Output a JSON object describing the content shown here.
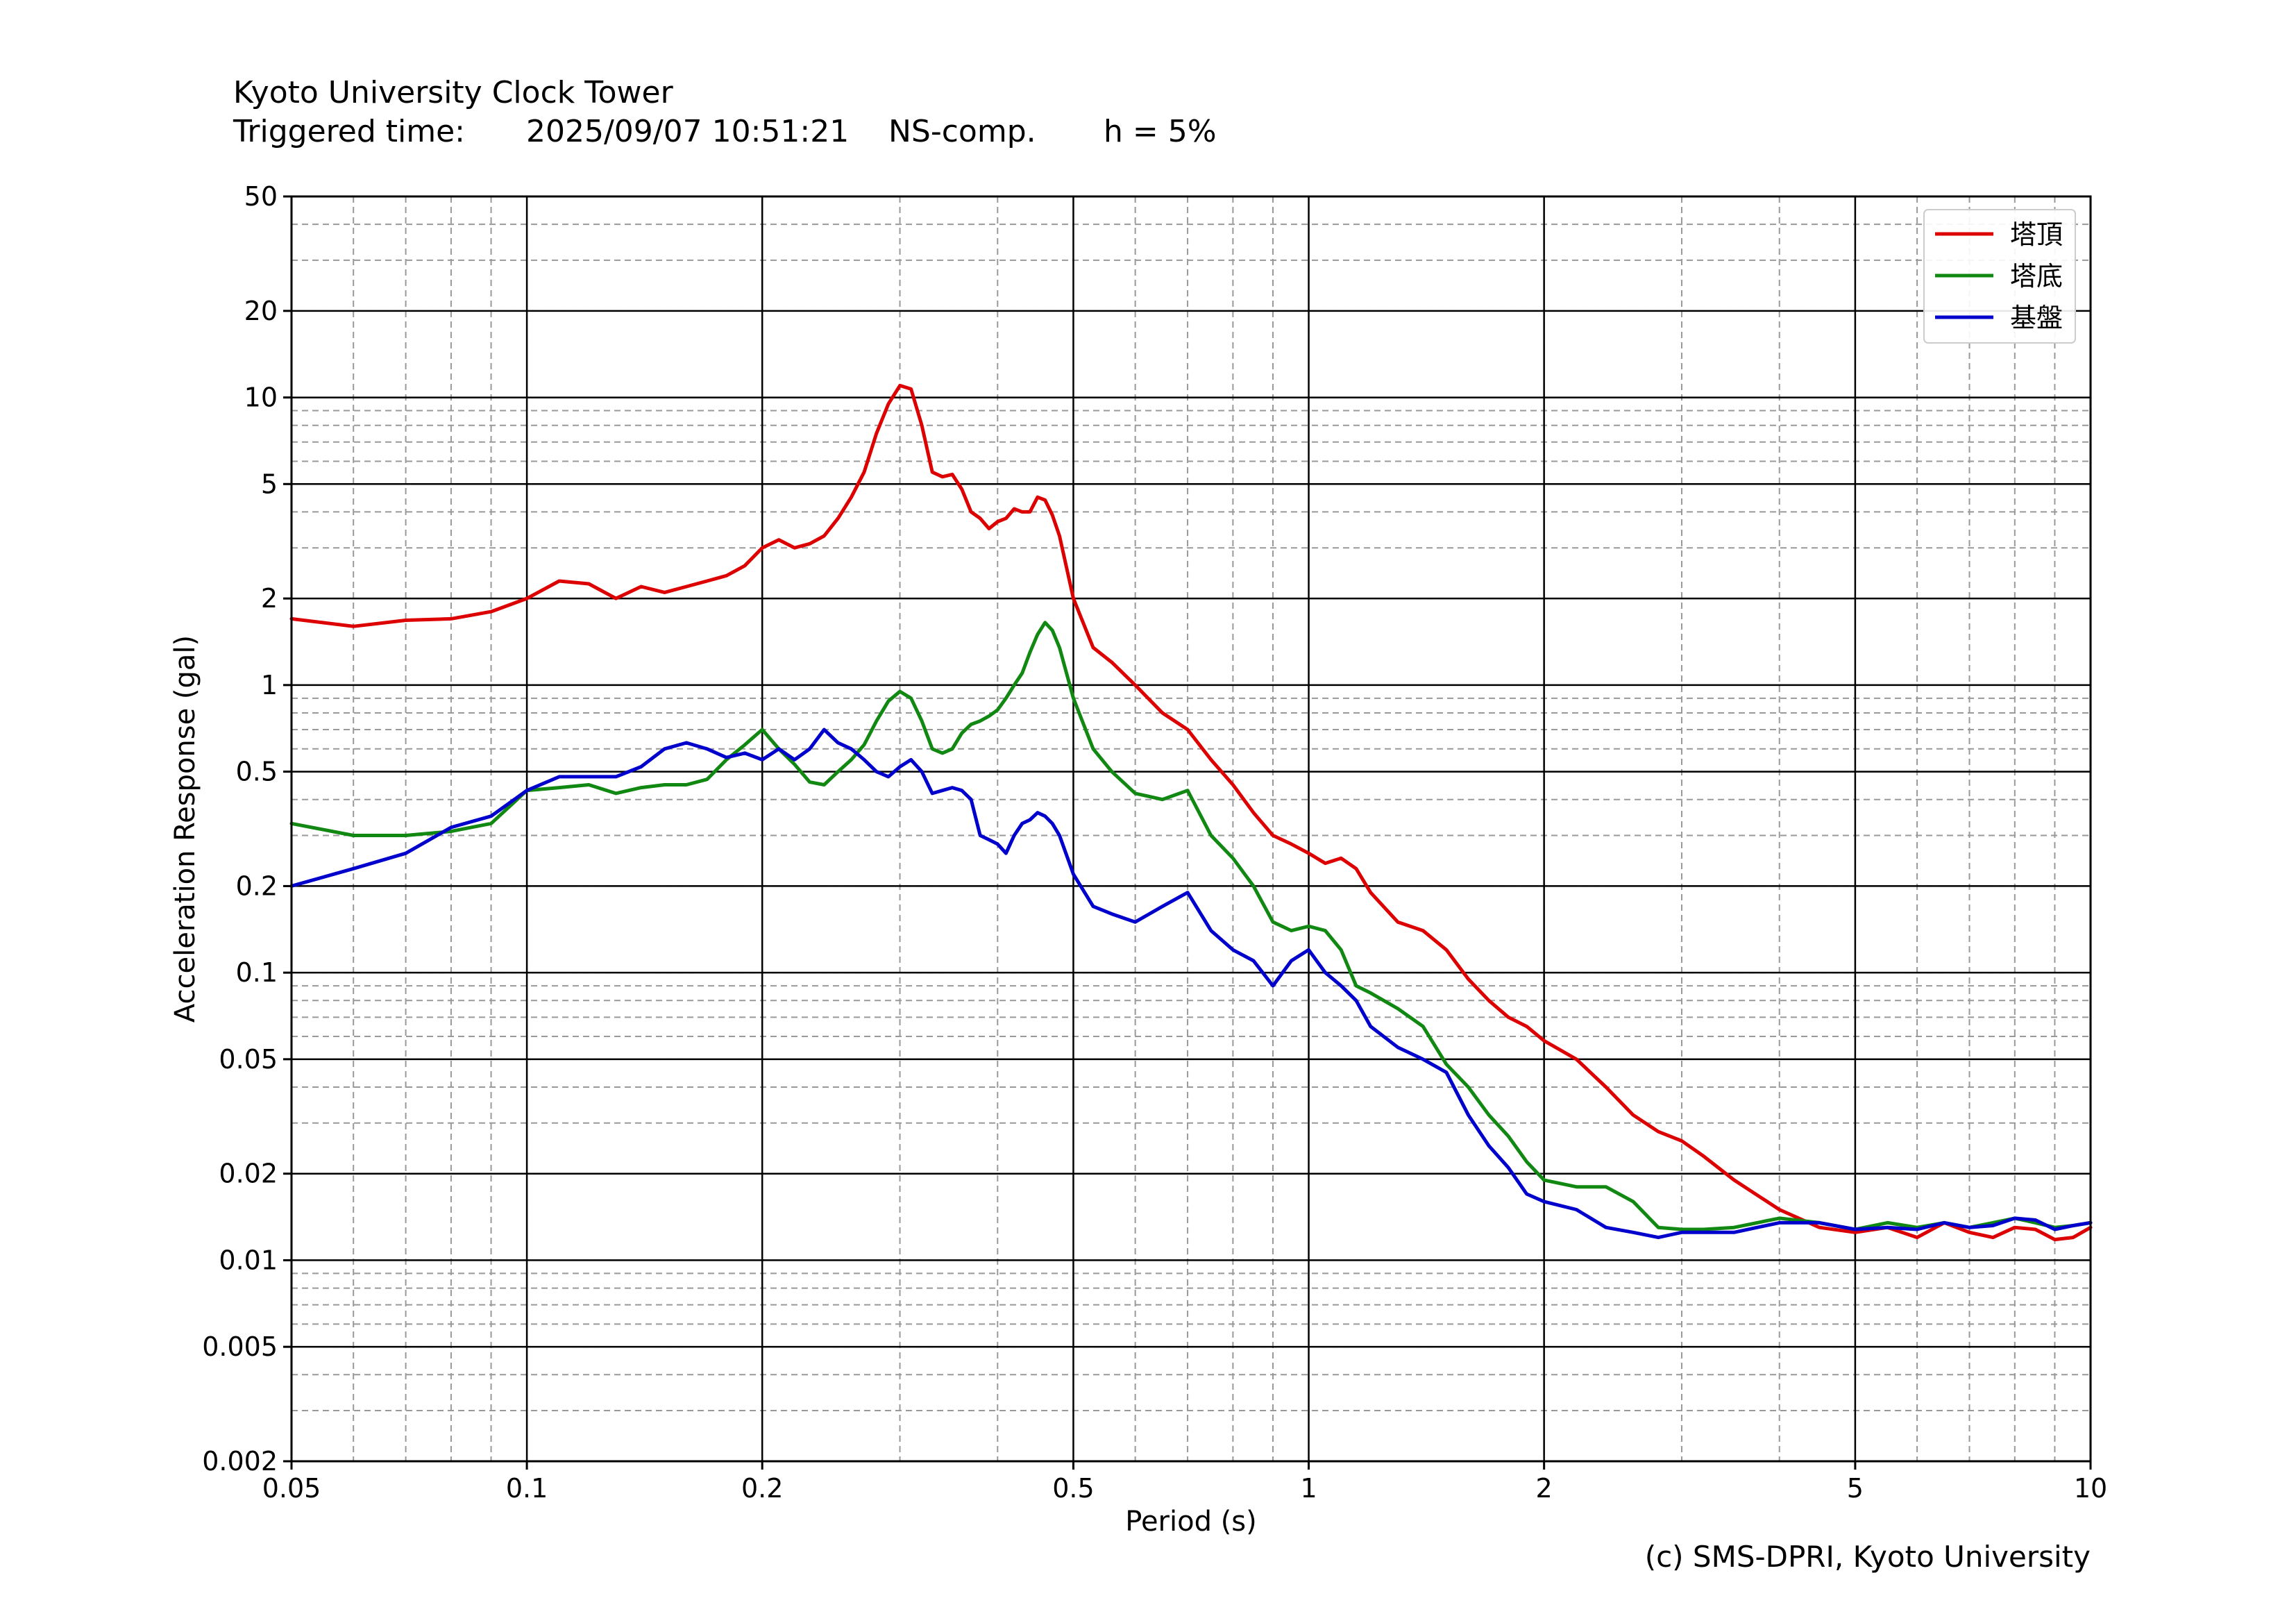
{
  "header": {
    "title": "Kyoto University Clock Tower",
    "triggered_label": "Triggered time:",
    "triggered_value": "2025/09/07 10:51:21",
    "component": "NS-comp.",
    "damping": "h = 5%"
  },
  "credit": "(c) SMS-DPRI, Kyoto University",
  "chart_data": {
    "type": "line",
    "title": "Kyoto University Clock Tower",
    "xlabel": "Period (s)",
    "ylabel": "Acceleration Response (gal)",
    "xscale": "log",
    "yscale": "log",
    "xlim": [
      0.05,
      10
    ],
    "ylim": [
      0.002,
      50
    ],
    "xticks": [
      0.05,
      0.1,
      0.2,
      0.5,
      1,
      2,
      5,
      10
    ],
    "xtick_labels": [
      "0.05",
      "0.1",
      "0.2",
      "0.5",
      "1",
      "2",
      "5",
      "10"
    ],
    "yticks": [
      0.002,
      0.005,
      0.01,
      0.02,
      0.05,
      0.1,
      0.2,
      0.5,
      1,
      2,
      5,
      10,
      20,
      50
    ],
    "ytick_labels": [
      "0.002",
      "0.005",
      "0.01",
      "0.02",
      "0.05",
      "0.1",
      "0.2",
      "0.5",
      "1",
      "2",
      "5",
      "10",
      "20",
      "50"
    ],
    "grid": true,
    "legend_position": "top-right",
    "series": [
      {
        "name": "塔頂",
        "color": "#dd0000",
        "x": [
          0.05,
          0.06,
          0.07,
          0.08,
          0.09,
          0.1,
          0.11,
          0.12,
          0.13,
          0.14,
          0.15,
          0.16,
          0.17,
          0.18,
          0.19,
          0.2,
          0.21,
          0.22,
          0.23,
          0.24,
          0.25,
          0.26,
          0.27,
          0.28,
          0.29,
          0.3,
          0.31,
          0.32,
          0.33,
          0.34,
          0.35,
          0.36,
          0.37,
          0.38,
          0.39,
          0.4,
          0.41,
          0.42,
          0.43,
          0.44,
          0.45,
          0.46,
          0.47,
          0.48,
          0.5,
          0.53,
          0.56,
          0.6,
          0.65,
          0.7,
          0.75,
          0.8,
          0.85,
          0.9,
          0.95,
          1.0,
          1.05,
          1.1,
          1.15,
          1.2,
          1.3,
          1.4,
          1.5,
          1.6,
          1.7,
          1.8,
          1.9,
          2.0,
          2.2,
          2.4,
          2.6,
          2.8,
          3.0,
          3.2,
          3.5,
          4.0,
          4.5,
          5.0,
          5.5,
          6.0,
          6.5,
          7.0,
          7.5,
          8.0,
          8.5,
          9.0,
          9.5,
          10.0
        ],
        "y": [
          1.7,
          1.6,
          1.68,
          1.7,
          1.8,
          2.0,
          2.3,
          2.25,
          2.0,
          2.2,
          2.1,
          2.2,
          2.3,
          2.4,
          2.6,
          3.0,
          3.2,
          3.0,
          3.1,
          3.3,
          3.8,
          4.5,
          5.5,
          7.5,
          9.5,
          11.0,
          10.7,
          8.0,
          5.5,
          5.3,
          5.4,
          4.8,
          4.0,
          3.8,
          3.5,
          3.7,
          3.8,
          4.1,
          4.0,
          4.0,
          4.5,
          4.4,
          3.9,
          3.3,
          2.0,
          1.35,
          1.2,
          1.0,
          0.8,
          0.7,
          0.55,
          0.45,
          0.36,
          0.3,
          0.28,
          0.26,
          0.24,
          0.25,
          0.23,
          0.19,
          0.15,
          0.14,
          0.12,
          0.095,
          0.08,
          0.07,
          0.065,
          0.058,
          0.05,
          0.04,
          0.032,
          0.028,
          0.026,
          0.023,
          0.019,
          0.015,
          0.013,
          0.0125,
          0.013,
          0.012,
          0.0135,
          0.0125,
          0.012,
          0.013,
          0.0128,
          0.0118,
          0.012,
          0.013
        ]
      },
      {
        "name": "塔底",
        "color": "#118811",
        "x": [
          0.05,
          0.06,
          0.07,
          0.08,
          0.09,
          0.1,
          0.11,
          0.12,
          0.13,
          0.14,
          0.15,
          0.16,
          0.17,
          0.18,
          0.19,
          0.2,
          0.21,
          0.22,
          0.23,
          0.24,
          0.25,
          0.26,
          0.27,
          0.28,
          0.29,
          0.3,
          0.31,
          0.32,
          0.33,
          0.34,
          0.35,
          0.36,
          0.37,
          0.38,
          0.39,
          0.4,
          0.41,
          0.42,
          0.43,
          0.44,
          0.45,
          0.46,
          0.47,
          0.48,
          0.5,
          0.53,
          0.56,
          0.6,
          0.65,
          0.7,
          0.75,
          0.8,
          0.85,
          0.9,
          0.95,
          1.0,
          1.05,
          1.1,
          1.15,
          1.2,
          1.3,
          1.4,
          1.5,
          1.6,
          1.7,
          1.8,
          1.9,
          2.0,
          2.2,
          2.4,
          2.6,
          2.8,
          3.0,
          3.2,
          3.5,
          4.0,
          4.5,
          5.0,
          5.5,
          6.0,
          6.5,
          7.0,
          7.5,
          8.0,
          8.5,
          9.0,
          9.5,
          10.0
        ],
        "y": [
          0.33,
          0.3,
          0.3,
          0.31,
          0.33,
          0.43,
          0.44,
          0.45,
          0.42,
          0.44,
          0.45,
          0.45,
          0.47,
          0.55,
          0.62,
          0.7,
          0.6,
          0.53,
          0.46,
          0.45,
          0.5,
          0.55,
          0.62,
          0.75,
          0.88,
          0.95,
          0.9,
          0.75,
          0.6,
          0.58,
          0.6,
          0.68,
          0.73,
          0.75,
          0.78,
          0.82,
          0.9,
          1.0,
          1.1,
          1.3,
          1.5,
          1.65,
          1.55,
          1.35,
          0.9,
          0.6,
          0.5,
          0.42,
          0.4,
          0.43,
          0.3,
          0.25,
          0.2,
          0.15,
          0.14,
          0.145,
          0.14,
          0.12,
          0.09,
          0.085,
          0.075,
          0.065,
          0.048,
          0.04,
          0.032,
          0.027,
          0.022,
          0.019,
          0.018,
          0.018,
          0.016,
          0.013,
          0.0128,
          0.0128,
          0.013,
          0.014,
          0.0135,
          0.0128,
          0.0135,
          0.013,
          0.0135,
          0.013,
          0.0135,
          0.014,
          0.0135,
          0.013,
          0.0132,
          0.0135
        ]
      },
      {
        "name": "基盤",
        "color": "#0000cc",
        "x": [
          0.05,
          0.06,
          0.07,
          0.08,
          0.09,
          0.1,
          0.11,
          0.12,
          0.13,
          0.14,
          0.15,
          0.16,
          0.17,
          0.18,
          0.19,
          0.2,
          0.21,
          0.22,
          0.23,
          0.24,
          0.25,
          0.26,
          0.27,
          0.28,
          0.29,
          0.3,
          0.31,
          0.32,
          0.33,
          0.34,
          0.35,
          0.36,
          0.37,
          0.38,
          0.39,
          0.4,
          0.41,
          0.42,
          0.43,
          0.44,
          0.45,
          0.46,
          0.47,
          0.48,
          0.5,
          0.53,
          0.56,
          0.6,
          0.65,
          0.7,
          0.75,
          0.8,
          0.85,
          0.9,
          0.95,
          1.0,
          1.05,
          1.1,
          1.15,
          1.2,
          1.3,
          1.4,
          1.5,
          1.6,
          1.7,
          1.8,
          1.9,
          2.0,
          2.2,
          2.4,
          2.6,
          2.8,
          3.0,
          3.2,
          3.5,
          4.0,
          4.5,
          5.0,
          5.5,
          6.0,
          6.5,
          7.0,
          7.5,
          8.0,
          8.5,
          9.0,
          9.5,
          10.0
        ],
        "y": [
          0.2,
          0.23,
          0.26,
          0.32,
          0.35,
          0.43,
          0.48,
          0.48,
          0.48,
          0.52,
          0.6,
          0.63,
          0.6,
          0.56,
          0.58,
          0.55,
          0.6,
          0.55,
          0.6,
          0.7,
          0.63,
          0.6,
          0.55,
          0.5,
          0.48,
          0.52,
          0.55,
          0.5,
          0.42,
          0.43,
          0.44,
          0.43,
          0.4,
          0.3,
          0.29,
          0.28,
          0.26,
          0.3,
          0.33,
          0.34,
          0.36,
          0.35,
          0.33,
          0.3,
          0.22,
          0.17,
          0.16,
          0.15,
          0.17,
          0.19,
          0.14,
          0.12,
          0.11,
          0.09,
          0.11,
          0.12,
          0.1,
          0.09,
          0.08,
          0.065,
          0.055,
          0.05,
          0.045,
          0.032,
          0.025,
          0.021,
          0.017,
          0.016,
          0.015,
          0.013,
          0.0125,
          0.012,
          0.0125,
          0.0125,
          0.0125,
          0.0135,
          0.0135,
          0.0128,
          0.013,
          0.0128,
          0.0135,
          0.013,
          0.0132,
          0.014,
          0.0138,
          0.0128,
          0.0132,
          0.0135
        ]
      }
    ]
  }
}
